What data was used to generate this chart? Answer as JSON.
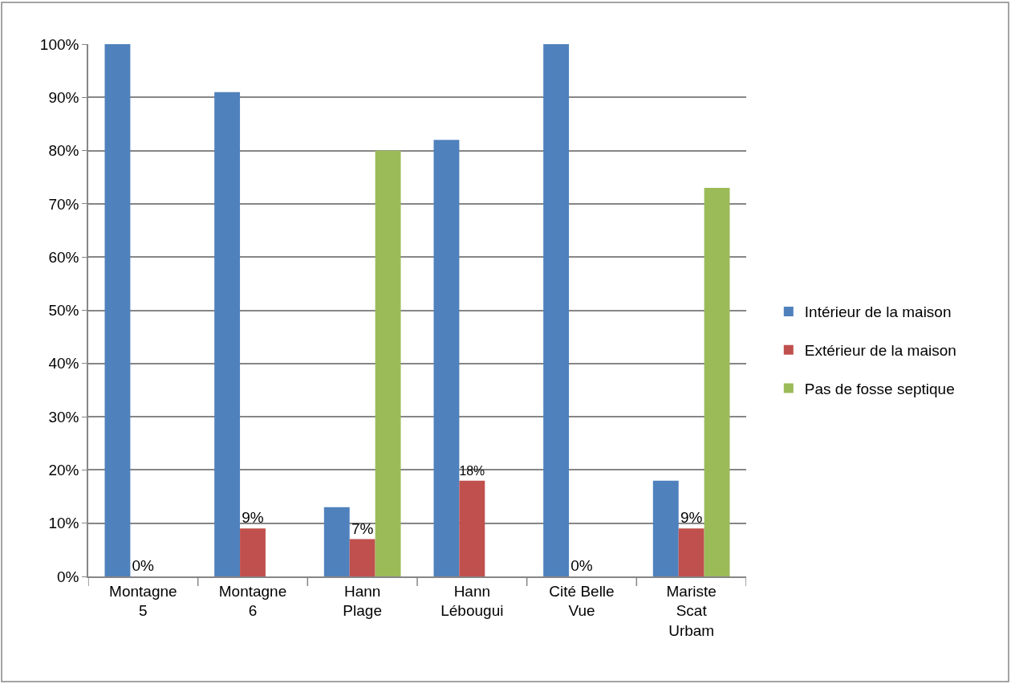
{
  "chart_data": {
    "type": "bar",
    "categories": [
      "Montagne 5",
      "Montagne 6",
      "Hann Plage",
      "Hann Lébougui",
      "Cité Belle Vue",
      "Mariste Scat Urbam"
    ],
    "series": [
      {
        "name": "Intérieur de la maison",
        "color": "#4f81bd",
        "values": [
          100,
          91,
          13,
          82,
          100,
          18
        ]
      },
      {
        "name": "Extérieur de la maison",
        "color": "#c0504d",
        "values": [
          0,
          9,
          7,
          18,
          0,
          9
        ],
        "value_labels": [
          "0%",
          "9%",
          "7%",
          "18%",
          "0%",
          "9%"
        ]
      },
      {
        "name": "Pas de fosse septique",
        "color": "#9bbb59",
        "values": [
          0,
          0,
          80,
          0,
          0,
          73
        ]
      }
    ],
    "ylim": [
      0,
      100
    ],
    "yticks": [
      {
        "value": 0,
        "label": "0%"
      },
      {
        "value": 10,
        "label": "10%"
      },
      {
        "value": 20,
        "label": "20%"
      },
      {
        "value": 30,
        "label": "30%"
      },
      {
        "value": 40,
        "label": "40%"
      },
      {
        "value": 50,
        "label": "50%"
      },
      {
        "value": 60,
        "label": "60%"
      },
      {
        "value": 70,
        "label": "70%"
      },
      {
        "value": 80,
        "label": "80%"
      },
      {
        "value": 90,
        "label": "90%"
      },
      {
        "value": 100,
        "label": "100%"
      }
    ],
    "grid": "y",
    "legend": "right"
  }
}
